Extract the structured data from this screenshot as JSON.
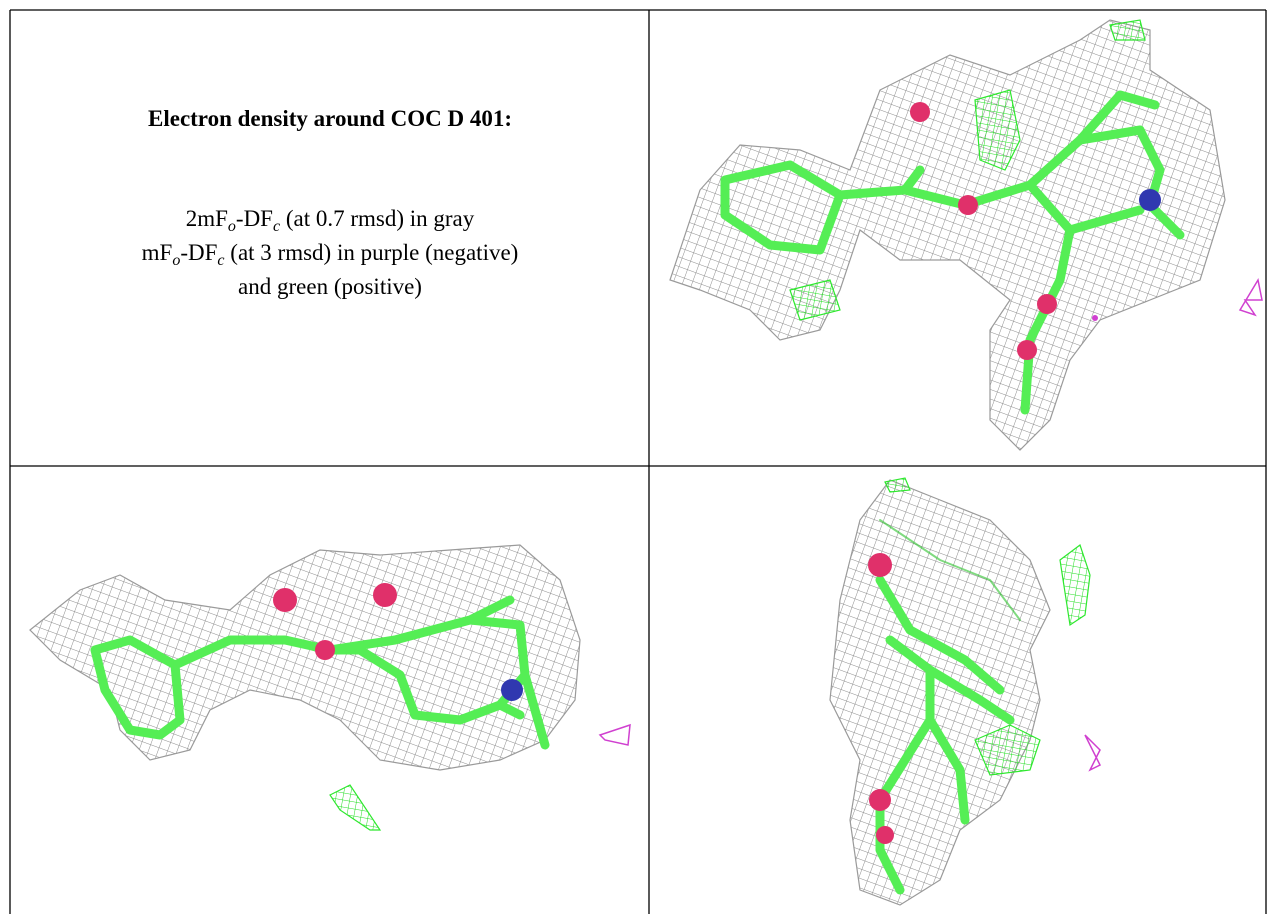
{
  "header": {
    "title": "Electron density around COC D 401:"
  },
  "caption": [
    [
      {
        "t": "2mF"
      },
      {
        "t": "o",
        "sub": true
      },
      {
        "t": "-DF"
      },
      {
        "t": "c",
        "sub": true
      },
      {
        "t": " (at 0.7 rmsd) in gray"
      }
    ],
    [
      {
        "t": "mF"
      },
      {
        "t": "o",
        "sub": true
      },
      {
        "t": "-DF"
      },
      {
        "t": "c",
        "sub": true
      },
      {
        "t": " (at 3 rmsd) in purple (negative)"
      }
    ],
    [
      {
        "t": "and green (positive)"
      }
    ]
  ]
}
